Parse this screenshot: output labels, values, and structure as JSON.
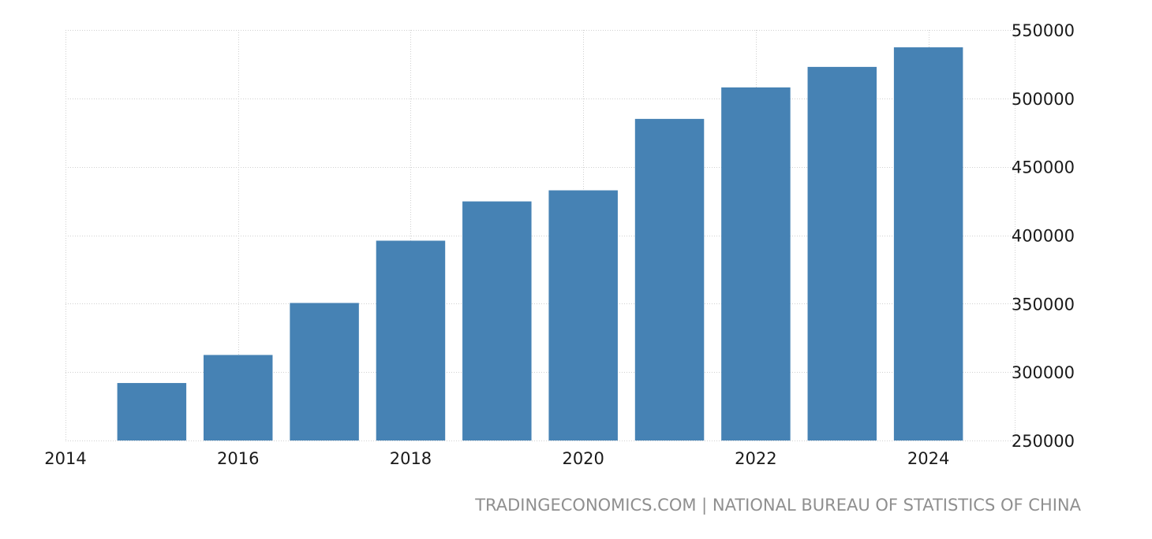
{
  "source": {
    "text": "TRADINGECONOMICS.COM | NATIONAL BUREAU OF STATISTICS OF CHINA"
  },
  "colors": {
    "bar": "#4682b4",
    "grid": "#d0d0d0",
    "axis_text": "#1a1a1a",
    "source_text": "#8f8f8f"
  },
  "chart_data": {
    "type": "bar",
    "x": [
      2015,
      2016,
      2017,
      2018,
      2019,
      2020,
      2021,
      2022,
      2023,
      2024
    ],
    "values": [
      292000,
      312500,
      350500,
      396000,
      424700,
      432800,
      485000,
      508000,
      523000,
      537300
    ],
    "xlim": [
      2014,
      2025
    ],
    "ylim": [
      250000,
      550000
    ],
    "x_ticks": [
      2014,
      2016,
      2018,
      2020,
      2022,
      2024
    ],
    "x_tick_labels": [
      "2014",
      "2016",
      "2018",
      "2020",
      "2022",
      "2024"
    ],
    "y_ticks": [
      250000,
      300000,
      350000,
      400000,
      450000,
      500000,
      550000
    ],
    "y_tick_labels": [
      "250000",
      "300000",
      "350000",
      "400000",
      "450000",
      "500000",
      "550000"
    ],
    "y_axis_side": "right",
    "grid": true,
    "grid_style": "dotted",
    "title": "",
    "xlabel": "",
    "ylabel": ""
  }
}
